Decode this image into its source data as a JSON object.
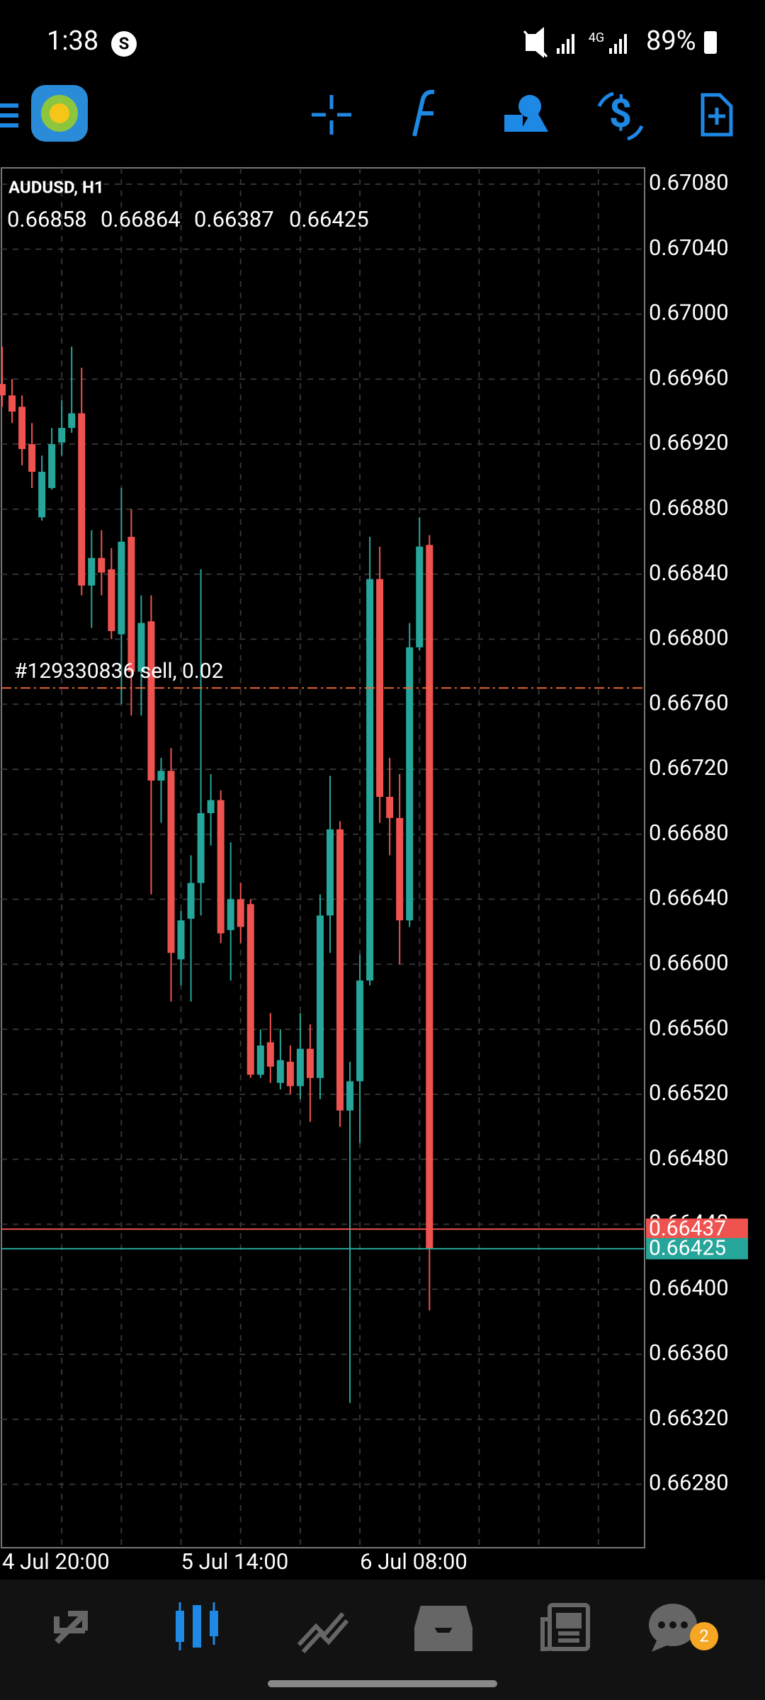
{
  "status_bar": {
    "time": "1:38",
    "network": "4G",
    "battery": "89%"
  },
  "chart_data": {
    "type": "candlestick",
    "symbol": "AUDUSD, H1",
    "categories": [
      "4 Jul 20:00",
      null,
      null,
      null,
      null,
      null,
      null,
      null,
      null,
      null,
      null,
      null,
      null,
      null,
      null,
      null,
      null,
      null,
      "5 Jul 14:00",
      null,
      null,
      null,
      null,
      null,
      null,
      null,
      null,
      null,
      null,
      null,
      null,
      null,
      null,
      null,
      null,
      null,
      "6 Jul 08:00",
      null,
      null,
      null,
      null,
      null,
      null,
      null
    ],
    "open": [
      0.66957,
      0.6695,
      0.66943,
      0.6692,
      0.66875,
      0.66893,
      0.66921,
      0.6693,
      0.66939,
      0.66833,
      0.6685,
      0.66843,
      0.66803,
      0.66863,
      0.6678,
      0.66811,
      0.66713,
      0.66719,
      0.66603,
      0.66628,
      0.6665,
      0.66693,
      0.66701,
      0.66621,
      0.6664,
      0.66637,
      0.66532,
      0.66552,
      0.66527,
      0.6654,
      0.66525,
      0.66548,
      0.6653,
      0.6663,
      0.66683,
      0.6651,
      0.66528,
      0.6659,
      0.66837,
      0.66703,
      0.6669,
      0.66627,
      0.66795,
      0.66858
    ],
    "high": [
      0.6698,
      0.6696,
      0.6695,
      0.66933,
      0.66913,
      0.6693,
      0.66947,
      0.6698,
      0.66967,
      0.66867,
      0.66867,
      0.66856,
      0.66893,
      0.6688,
      0.66827,
      0.66827,
      0.66727,
      0.66733,
      0.66633,
      0.66667,
      0.66843,
      0.66717,
      0.66707,
      0.66675,
      0.6665,
      0.6664,
      0.6656,
      0.6657,
      0.6656,
      0.6655,
      0.6657,
      0.66563,
      0.66643,
      0.66716,
      0.66688,
      0.6654,
      0.66606,
      0.66863,
      0.66857,
      0.66727,
      0.66717,
      0.6681,
      0.66875,
      0.66864
    ],
    "low": [
      0.66943,
      0.66933,
      0.66907,
      0.66893,
      0.66873,
      0.66892,
      0.66913,
      0.66927,
      0.66827,
      0.66807,
      0.66827,
      0.668,
      0.6676,
      0.66753,
      0.66753,
      0.66643,
      0.66687,
      0.66577,
      0.66587,
      0.66577,
      0.6663,
      0.66673,
      0.66613,
      0.6659,
      0.66613,
      0.6653,
      0.6653,
      0.66527,
      0.66523,
      0.6652,
      0.66517,
      0.66503,
      0.66517,
      0.66607,
      0.665,
      0.6633,
      0.6649,
      0.66587,
      0.66687,
      0.66667,
      0.666,
      0.66623,
      0.66793,
      0.66387
    ],
    "close": [
      0.6695,
      0.6694,
      0.66917,
      0.66903,
      0.66903,
      0.6692,
      0.6693,
      0.66939,
      0.66833,
      0.6685,
      0.66841,
      0.66805,
      0.6686,
      0.6678,
      0.6681,
      0.66713,
      0.66719,
      0.66607,
      0.66627,
      0.6665,
      0.66693,
      0.66701,
      0.66619,
      0.6664,
      0.66623,
      0.66532,
      0.6655,
      0.66537,
      0.66541,
      0.66525,
      0.66548,
      0.6653,
      0.6663,
      0.66683,
      0.6651,
      0.66528,
      0.6659,
      0.66837,
      0.66703,
      0.6669,
      0.66627,
      0.66795,
      0.66857,
      0.66425
    ],
    "up_color": "#26a69a",
    "down_color": "#ef5350",
    "ask": 0.66437,
    "order_line": {
      "label": "#129330836 sell, 0.02",
      "price": 0.6677,
      "color": "#e8643c"
    },
    "ylim": [
      0.66241,
      0.6709
    ],
    "yticks": [
      {
        "value": 0.6708,
        "label": "0.67080"
      },
      {
        "value": 0.6704,
        "label": "0.67040"
      },
      {
        "value": 0.67,
        "label": "0.67000"
      },
      {
        "value": 0.6696,
        "label": "0.66960"
      },
      {
        "value": 0.6692,
        "label": "0.66920"
      },
      {
        "value": 0.6688,
        "label": "0.66880"
      },
      {
        "value": 0.6684,
        "label": "0.66840"
      },
      {
        "value": 0.668,
        "label": "0.66800"
      },
      {
        "value": 0.6676,
        "label": "0.66760"
      },
      {
        "value": 0.6672,
        "label": "0.66720"
      },
      {
        "value": 0.6668,
        "label": "0.66680"
      },
      {
        "value": 0.6664,
        "label": "0.66640"
      },
      {
        "value": 0.666,
        "label": "0.66600"
      },
      {
        "value": 0.6656,
        "label": "0.66560"
      },
      {
        "value": 0.6652,
        "label": "0.66520"
      },
      {
        "value": 0.6648,
        "label": "0.66480"
      },
      {
        "value": 0.6644,
        "label": "0.66440"
      },
      {
        "value": 0.664,
        "label": "0.66400"
      },
      {
        "value": 0.6636,
        "label": "0.66360"
      },
      {
        "value": 0.6632,
        "label": "0.66320"
      },
      {
        "value": 0.6628,
        "label": "0.66280"
      }
    ],
    "grid": true
  },
  "nav": {
    "chat_badge": "2"
  }
}
